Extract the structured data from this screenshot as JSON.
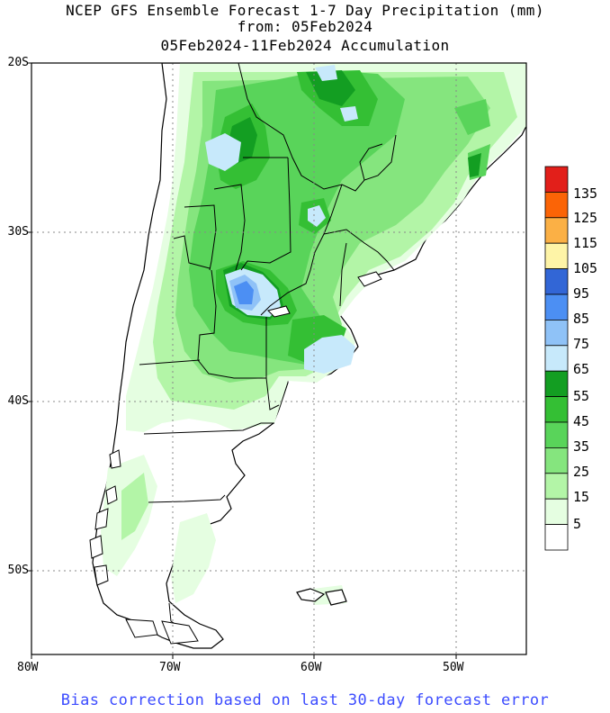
{
  "title": {
    "line1": "NCEP GFS Ensemble Forecast 1-7 Day Precipitation (mm)",
    "line2": "from: 05Feb2024",
    "line3": "05Feb2024-11Feb2024 Accumulation"
  },
  "axes": {
    "lat_labels": [
      "20S",
      "30S",
      "40S",
      "50S"
    ],
    "lon_labels": [
      "80W",
      "70W",
      "60W",
      "50W"
    ],
    "lat_range": [
      -55,
      -20
    ],
    "lon_range": [
      -80,
      -45
    ]
  },
  "colorbar": {
    "labels": [
      "135",
      "125",
      "115",
      "105",
      "95",
      "85",
      "75",
      "65",
      "55",
      "45",
      "35",
      "25",
      "15",
      "5"
    ],
    "colors": [
      "#e21f1a",
      "#fb6406",
      "#fbb045",
      "#fef4a7",
      "#3266d6",
      "#4c8ff3",
      "#8fc2f7",
      "#c7e9fb",
      "#139e22",
      "#34bf34",
      "#59d45a",
      "#85e57e",
      "#b3f5a7",
      "#e5fee1",
      "#ffffff"
    ]
  },
  "footer": "Bias correction based on last 30-day forecast error"
}
